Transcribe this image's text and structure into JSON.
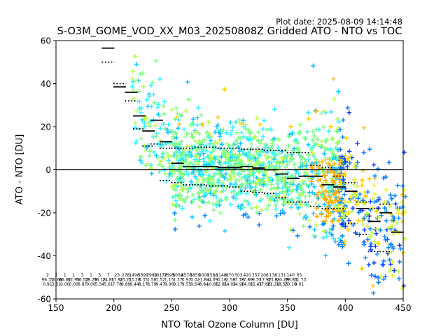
{
  "plot_date": "Plot date: 2025-08-09 14:14:48",
  "chart_data": {
    "type": "scatter",
    "title": "S-O3M_GOME_VOD_XX_M03_20250808Z Gridded ATO - NTO vs TOC",
    "xlabel": "NTO Total Ozone Column [DU]",
    "ylabel": "ATO - NTO [DU]",
    "xlim": [
      150,
      450
    ],
    "ylim": [
      -60,
      60
    ],
    "xticks": [
      150,
      200,
      250,
      300,
      350,
      400,
      450
    ],
    "yticks": [
      -60,
      -40,
      -20,
      0,
      20,
      40,
      60
    ],
    "grid": false,
    "legend": "none",
    "marker": "+",
    "colors": [
      "#0b3cff",
      "#0a86ff",
      "#13c8ff",
      "#37f5ff",
      "#7dff86",
      "#b9ff45",
      "#e5f03c",
      "#ffcc00",
      "#ffad00"
    ],
    "zero_line": 0,
    "bin_means": {
      "x": [
        195,
        205,
        215,
        222,
        230,
        237,
        245,
        255,
        265,
        275,
        285,
        295,
        305,
        315,
        325,
        335,
        345,
        355,
        365,
        375,
        385,
        395,
        405,
        415,
        425,
        435,
        445
      ],
      "y": [
        56.5,
        38.5,
        36,
        25,
        18,
        23,
        13,
        3,
        1.5,
        1.5,
        1.5,
        1,
        1,
        1.5,
        0.8,
        0,
        -2,
        -4,
        -3,
        -3,
        -7,
        -8,
        -10,
        -18,
        -24,
        -20,
        -29
      ]
    },
    "bin_std_upper": {
      "x": [
        195,
        205,
        215,
        222,
        230,
        237,
        245,
        255,
        265,
        275,
        285,
        295,
        305,
        315,
        325,
        335,
        345,
        355,
        365,
        375,
        385,
        395,
        405,
        415,
        425,
        435
      ],
      "y": [
        50,
        40,
        32,
        19,
        11,
        12,
        10,
        10,
        10,
        10.5,
        10.5,
        10,
        10,
        9.5,
        9.5,
        9,
        9,
        8,
        8,
        2,
        1,
        -3,
        -6,
        -15,
        -18,
        -16
      ]
    },
    "bin_std_lower": {
      "x": [
        245,
        255,
        265,
        275,
        285,
        295,
        305,
        315,
        325,
        335,
        345,
        355,
        365,
        375,
        385,
        395,
        405,
        415,
        425,
        435
      ],
      "y": [
        -5,
        -6,
        -7,
        -7,
        -7.5,
        -7.5,
        -8,
        -10,
        -10.5,
        -11,
        -13,
        -15,
        -15,
        -17,
        -18,
        -18,
        -25,
        -30,
        -38,
        -38
      ]
    },
    "bin_stats": [
      {
        "x": 187,
        "l1": "2",
        "l2": "96.31",
        "l3": "0.91"
      },
      {
        "x": 197,
        "l1": "2",
        "l2": "30.66",
        "l3": "3.51"
      },
      {
        "x": 207,
        "l1": "1",
        "l2": "66.67",
        "l3": "0.00"
      },
      {
        "x": 217,
        "l1": "1",
        "l2": "62.95",
        "l3": "0.00"
      },
      {
        "x": 227,
        "l1": "3",
        "l2": "56.52",
        "l3": "6.87"
      },
      {
        "x": 237,
        "l1": "1",
        "l2": "38.29",
        "l3": "0.00"
      },
      {
        "x": 247,
        "l1": "5",
        "l2": "36.12",
        "l3": "5.34"
      },
      {
        "x": 257,
        "l1": "7",
        "l2": "24.81",
        "l3": "5.61"
      },
      {
        "x": 267,
        "l1": "23",
        "l2": "17.92",
        "l3": "7.78"
      },
      {
        "x": 277,
        "l1": "278",
        "l2": "23.21",
        "l3": "9.89"
      },
      {
        "x": 287,
        "l1": "1490",
        "l2": "13.28",
        "l3": "9.44"
      },
      {
        "x": 297,
        "l1": "5399",
        "l2": "3.35",
        "l3": "8.17"
      },
      {
        "x": 307,
        "l1": "7999",
        "l2": "1.58",
        "l3": "8.79"
      },
      {
        "x": 317,
        "l1": "10177",
        "l2": "1.52",
        "l3": "9.47"
      },
      {
        "x": 327,
        "l1": "7695",
        "l2": "1.15",
        "l3": "9.06"
      },
      {
        "x": 337,
        "l1": "6058",
        "l2": "1.37",
        "l3": "9.17"
      },
      {
        "x": 347,
        "l1": "4578",
        "l2": "0.97",
        "l3": "9.55"
      },
      {
        "x": 357,
        "l1": "3859",
        "l2": "0.02",
        "l3": "9.54"
      },
      {
        "x": 367,
        "l1": "3008",
        "l2": "-1.84",
        "l3": "8.84"
      },
      {
        "x": 377,
        "l1": "1588",
        "l2": "-4.09",
        "l3": "10.85"
      },
      {
        "x": 387,
        "l1": "1148",
        "l2": "-3.16",
        "l3": "12.81"
      },
      {
        "x": 397,
        "l1": "870",
        "l2": "-2.58",
        "l3": "14.02"
      },
      {
        "x": 407,
        "l1": "503",
        "l2": "-7.38",
        "l3": "14.96"
      },
      {
        "x": 417,
        "l1": "420",
        "l2": "-7.80",
        "l3": "14.01"
      },
      {
        "x": 427,
        "l1": "357",
        "l2": "-9.31",
        "l3": "15.41"
      },
      {
        "x": 437,
        "l1": "206",
        "l2": "-17.92",
        "l3": "17.66"
      },
      {
        "x": 447,
        "l1": "138",
        "l2": "-23.81",
        "l3": "21.21"
      },
      {
        "x": 457,
        "l1": "131",
        "l2": "-20.29",
        "l3": "18.55"
      },
      {
        "x": 467,
        "l1": "140",
        "l2": "-28.53",
        "l3": "20.10"
      },
      {
        "x": 477,
        "l1": "65",
        "l2": "-31.73",
        "l3": "9.01"
      }
    ]
  }
}
